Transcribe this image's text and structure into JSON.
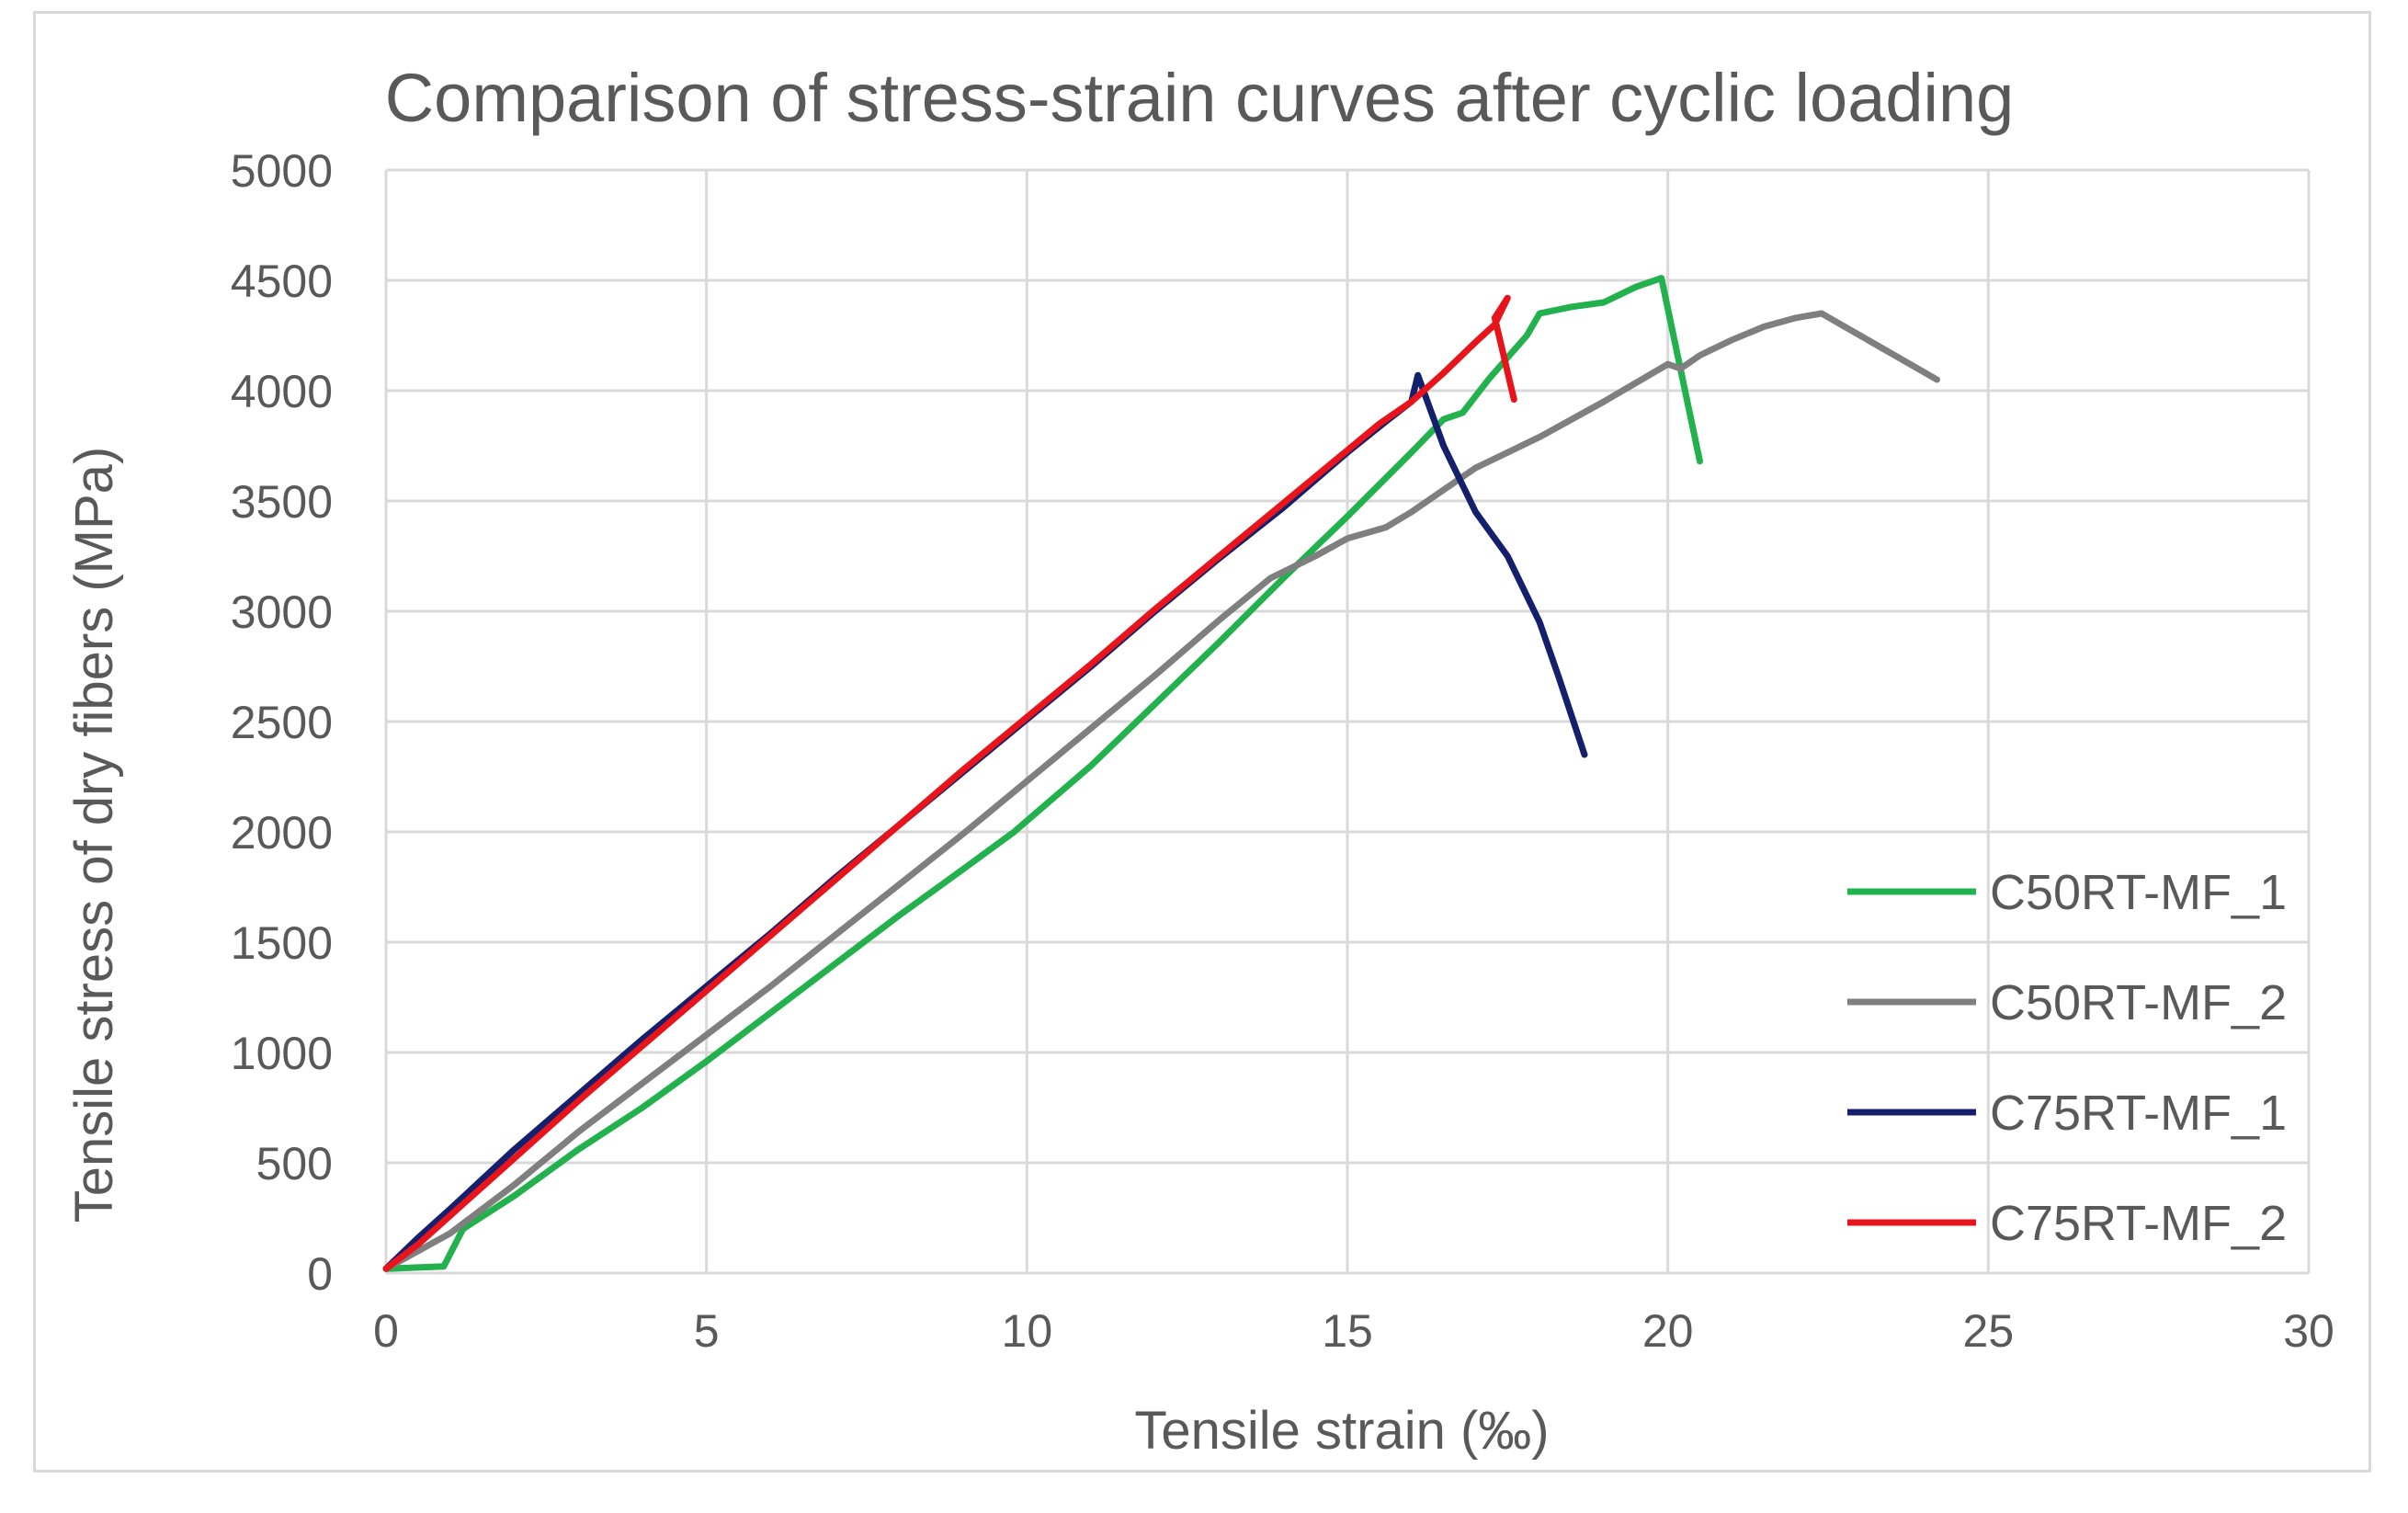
{
  "chart_data": {
    "type": "line",
    "title": "Comparison of stress-strain curves after cyclic loading",
    "xlabel": "Tensile strain (‰)",
    "ylabel": "Tensile stress of dry fibers (MPa)",
    "xlim": [
      0,
      30
    ],
    "ylim": [
      0,
      5000
    ],
    "xticks": [
      0,
      5,
      10,
      15,
      20,
      25,
      30
    ],
    "yticks": [
      0,
      500,
      1000,
      1500,
      2000,
      2500,
      3000,
      3500,
      4000,
      4500,
      5000
    ],
    "grid": true,
    "legend_position": "bottom-right",
    "series": [
      {
        "name": "C50RT-MF_1",
        "color": "#22b14c",
        "points": [
          [
            0,
            20
          ],
          [
            0.9,
            30
          ],
          [
            1.2,
            200
          ],
          [
            2,
            350
          ],
          [
            3,
            560
          ],
          [
            4,
            750
          ],
          [
            5,
            960
          ],
          [
            6,
            1180
          ],
          [
            7,
            1400
          ],
          [
            8,
            1620
          ],
          [
            9,
            1830
          ],
          [
            9.8,
            2000
          ],
          [
            10,
            2050
          ],
          [
            11,
            2300
          ],
          [
            12,
            2580
          ],
          [
            13,
            2860
          ],
          [
            14,
            3150
          ],
          [
            15,
            3430
          ],
          [
            16,
            3720
          ],
          [
            16.5,
            3870
          ],
          [
            16.8,
            3900
          ],
          [
            17.2,
            4050
          ],
          [
            17.5,
            4150
          ],
          [
            17.8,
            4250
          ],
          [
            18,
            4350
          ],
          [
            18.5,
            4380
          ],
          [
            19,
            4400
          ],
          [
            19.5,
            4470
          ],
          [
            19.9,
            4510
          ],
          [
            20.5,
            3680
          ]
        ]
      },
      {
        "name": "C50RT-MF_2",
        "color": "#7f7f7f",
        "points": [
          [
            0,
            20
          ],
          [
            1,
            180
          ],
          [
            2,
            400
          ],
          [
            3,
            640
          ],
          [
            4,
            860
          ],
          [
            5,
            1080
          ],
          [
            6,
            1300
          ],
          [
            7,
            1530
          ],
          [
            8,
            1760
          ],
          [
            9,
            1990
          ],
          [
            10,
            2230
          ],
          [
            11,
            2470
          ],
          [
            12,
            2710
          ],
          [
            13,
            2960
          ],
          [
            13.8,
            3150
          ],
          [
            14.5,
            3250
          ],
          [
            15,
            3330
          ],
          [
            15.6,
            3380
          ],
          [
            16,
            3450
          ],
          [
            17,
            3650
          ],
          [
            18,
            3790
          ],
          [
            19,
            3950
          ],
          [
            20,
            4120
          ],
          [
            20.2,
            4100
          ],
          [
            20.5,
            4160
          ],
          [
            21,
            4230
          ],
          [
            21.5,
            4290
          ],
          [
            22,
            4330
          ],
          [
            22.4,
            4350
          ],
          [
            24.2,
            4050
          ]
        ]
      },
      {
        "name": "C75RT-MF_1",
        "color": "#14206b",
        "points": [
          [
            0,
            20
          ],
          [
            0.5,
            160
          ],
          [
            1,
            290
          ],
          [
            2,
            560
          ],
          [
            3,
            810
          ],
          [
            4,
            1060
          ],
          [
            5,
            1300
          ],
          [
            6,
            1540
          ],
          [
            7,
            1790
          ],
          [
            8,
            2030
          ],
          [
            9,
            2270
          ],
          [
            10,
            2510
          ],
          [
            11,
            2750
          ],
          [
            12,
            3000
          ],
          [
            13,
            3240
          ],
          [
            14,
            3470
          ],
          [
            15,
            3720
          ],
          [
            15.6,
            3860
          ],
          [
            16,
            3950
          ],
          [
            16.1,
            4070
          ],
          [
            16.5,
            3750
          ],
          [
            17,
            3450
          ],
          [
            17.5,
            3250
          ],
          [
            18,
            2950
          ],
          [
            18.3,
            2700
          ],
          [
            18.7,
            2350
          ]
        ]
      },
      {
        "name": "C75RT-MF_2",
        "color": "#e8141b",
        "points": [
          [
            0,
            20
          ],
          [
            0.5,
            130
          ],
          [
            1,
            260
          ],
          [
            2,
            520
          ],
          [
            3,
            780
          ],
          [
            4,
            1030
          ],
          [
            5,
            1280
          ],
          [
            6,
            1530
          ],
          [
            7,
            1780
          ],
          [
            8,
            2030
          ],
          [
            9,
            2280
          ],
          [
            10,
            2520
          ],
          [
            11,
            2760
          ],
          [
            12,
            3010
          ],
          [
            13,
            3250
          ],
          [
            14,
            3490
          ],
          [
            15,
            3730
          ],
          [
            15.5,
            3850
          ],
          [
            16,
            3950
          ],
          [
            16.5,
            4080
          ],
          [
            17,
            4220
          ],
          [
            17.3,
            4300
          ],
          [
            17.5,
            4420
          ],
          [
            17.3,
            4330
          ],
          [
            17.6,
            3960
          ]
        ]
      }
    ]
  }
}
